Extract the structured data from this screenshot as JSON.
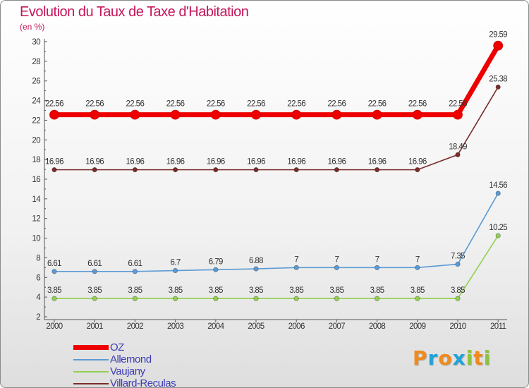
{
  "chart_data": {
    "type": "line",
    "title": "Evolution du Taux de Taxe d'Habitation",
    "ylabel": "(en %)",
    "xlabel": "",
    "x": [
      "2000",
      "2001",
      "2002",
      "2003",
      "2004",
      "2005",
      "2006",
      "2007",
      "2008",
      "2009",
      "2010",
      "2011"
    ],
    "ylim": [
      2,
      30
    ],
    "yticks": [
      2,
      4,
      6,
      8,
      10,
      12,
      14,
      16,
      18,
      20,
      22,
      24,
      26,
      28,
      30
    ],
    "grid": false,
    "legend_placement": "bottom-left",
    "series": [
      {
        "name": "OZ",
        "color": "#ee0000",
        "values": [
          22.56,
          22.56,
          22.56,
          22.56,
          22.56,
          22.56,
          22.56,
          22.56,
          22.56,
          22.56,
          22.56,
          29.59
        ],
        "labels": [
          "22.56",
          "22.56",
          "22.56",
          "22.56",
          "22.56",
          "22.56",
          "22.56",
          "22.56",
          "22.56",
          "22.56",
          "22.56",
          "29.59"
        ]
      },
      {
        "name": "Allemond",
        "color": "#5b9bd5",
        "values": [
          6.61,
          6.61,
          6.61,
          6.7,
          6.79,
          6.88,
          7,
          7,
          7,
          7,
          7.35,
          14.56
        ],
        "labels": [
          "6.61",
          "6.61",
          "6.61",
          "6.7",
          "6.79",
          "6.88",
          "7",
          "7",
          "7",
          "7",
          "7.35",
          "14.56"
        ]
      },
      {
        "name": "Vaujany",
        "color": "#92d050",
        "values": [
          3.85,
          3.85,
          3.85,
          3.85,
          3.85,
          3.85,
          3.85,
          3.85,
          3.85,
          3.85,
          3.85,
          10.25
        ],
        "labels": [
          "3.85",
          "3.85",
          "3.85",
          "3.85",
          "3.85",
          "3.85",
          "3.85",
          "3.85",
          "3.85",
          "3.85",
          "3.85",
          "10.25"
        ]
      },
      {
        "name": "Villard-Reculas",
        "color": "#7b2c2c",
        "values": [
          16.96,
          16.96,
          16.96,
          16.96,
          16.96,
          16.96,
          16.96,
          16.96,
          16.96,
          16.96,
          18.49,
          25.38
        ],
        "labels": [
          "16.96",
          "16.96",
          "16.96",
          "16.96",
          "16.96",
          "16.96",
          "16.96",
          "16.96",
          "16.96",
          "16.96",
          "18.49",
          "25.38"
        ]
      }
    ]
  },
  "brand": {
    "letters": [
      "P",
      "r",
      "o",
      "x",
      "i",
      "t",
      "i"
    ],
    "colors": [
      "#f08a1c",
      "#1fa3d8",
      "#f08a1c",
      "#1fa3d8",
      "#8bc53f",
      "#f08a1c",
      "#8bc53f"
    ]
  }
}
